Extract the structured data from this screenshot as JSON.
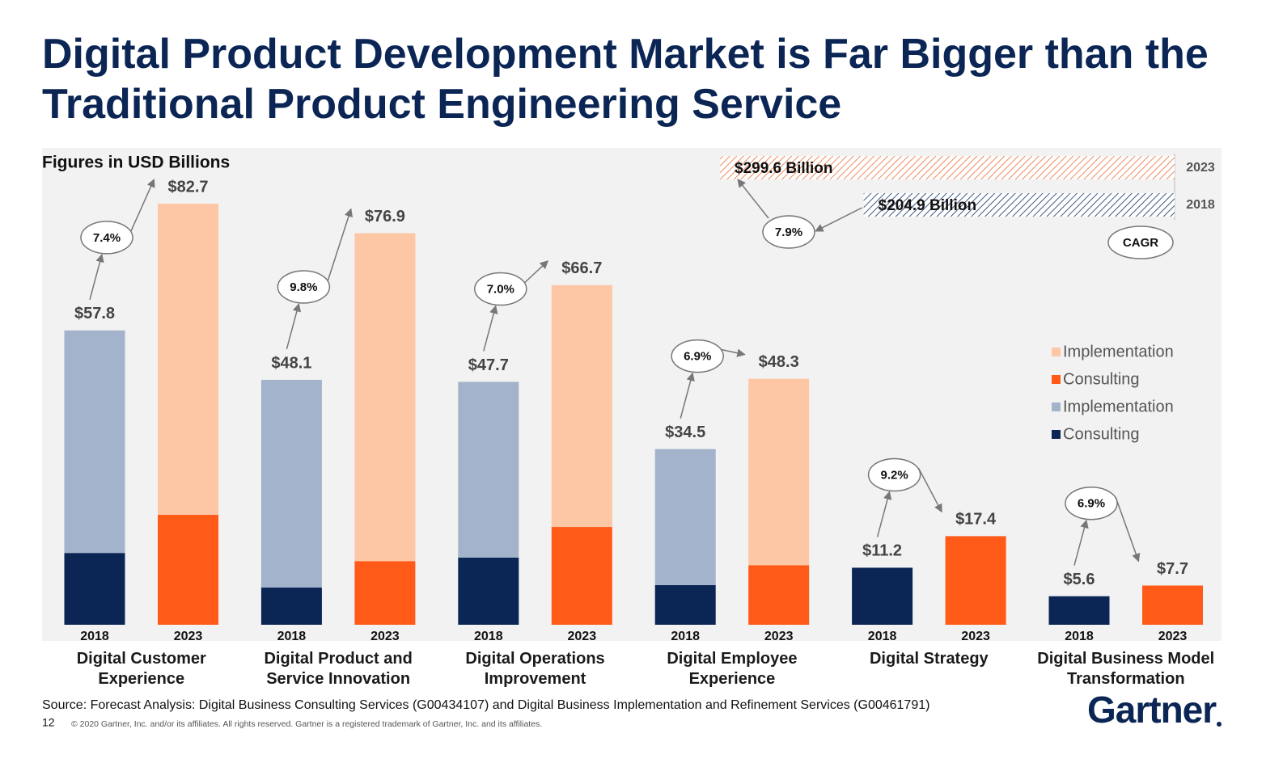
{
  "chart_data": {
    "type": "bar",
    "title": "Digital Product Development Market is Far Bigger than the Traditional Product Engineering Service",
    "subtitle": "Figures in USD Billions",
    "categories": [
      "Digital Customer Experience",
      "Digital Product and Service Innovation",
      "Digital Operations Improvement",
      "Digital Employee Experience",
      "Digital Strategy",
      "Digital Business Model Transformation"
    ],
    "series": [
      {
        "name": "Implementation",
        "period": "2023",
        "color": "#fdc6a4",
        "values": [
          61.1,
          64.4,
          47.5,
          36.6,
          null,
          null
        ]
      },
      {
        "name": "Consulting",
        "period": "2023",
        "color": "#ff5a17",
        "values": [
          21.6,
          12.5,
          19.2,
          11.7,
          17.4,
          7.7
        ]
      },
      {
        "name": "Implementation",
        "period": "2018",
        "color": "#a3b3cc",
        "values": [
          43.7,
          40.8,
          34.5,
          26.7,
          null,
          null
        ]
      },
      {
        "name": "Consulting",
        "period": "2018",
        "color": "#0b2655",
        "values": [
          14.1,
          7.3,
          13.2,
          7.8,
          11.2,
          5.6
        ]
      }
    ],
    "totals": [
      {
        "values": [
          57.8,
          48.1,
          47.7,
          34.5,
          11.2,
          5.6
        ],
        "value_labels": [
          "$57.8",
          "$48.1",
          "$47.7",
          "$34.5",
          "$11.2",
          "$5.6"
        ]
      },
      {
        "values": [
          82.7,
          76.9,
          66.7,
          48.3,
          17.4,
          7.7
        ],
        "value_labels": [
          "$82.7",
          "$76.9",
          "$66.7",
          "$48.3",
          "$17.4",
          "$7.7"
        ]
      }
    ],
    "cagr": {
      "values": [
        7.4,
        9.8,
        7.0,
        6.9,
        9.2,
        6.9
      ],
      "value_labels": [
        "7.4%",
        "9.8%",
        "7.0%",
        "6.9%",
        "9.2%",
        "6.9%"
      ]
    },
    "ylim": [
      0,
      85
    ],
    "market": {
      "xlim": [
        0,
        300
      ],
      "series": [
        {
          "period": "2023",
          "color": "#f08a5d",
          "value": 299.6,
          "value_label": "$299.6 Billion"
        },
        {
          "period": "2018",
          "color": "#3d5a80",
          "value": 204.9,
          "value_label": "$204.9 Billion"
        }
      ],
      "cagr": {
        "value": 7.9,
        "label": "7.9%"
      },
      "cagr_title": "CAGR"
    },
    "source": "Source: Forecast Analysis: Digital Business Consulting Services (G00434107) and Digital Business Implementation and Refinement Services (G00461791)",
    "page_number": "12",
    "copyright": "© 2020 Gartner, Inc. and/or its affiliates. All rights reserved. Gartner is a registered trademark of Gartner, Inc. and its affiliates.",
    "logo": "Gartner"
  }
}
